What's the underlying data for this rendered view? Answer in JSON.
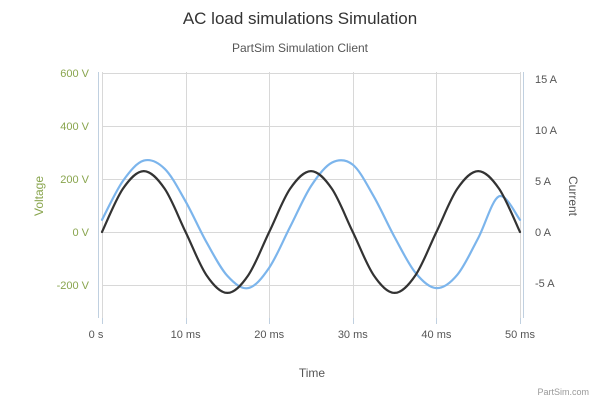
{
  "chart_data": {
    "type": "line",
    "title": "AC load simulations Simulation",
    "subtitle": "PartSim Simulation Client",
    "xlabel": "Time",
    "ylabel_left": "Voltage",
    "ylabel_right": "Current",
    "x_ticks": [
      "0 s",
      "10 ms",
      "20 ms",
      "30 ms",
      "40 ms",
      "50 ms"
    ],
    "y_left_ticks": [
      "600 V",
      "400 V",
      "200 V",
      "0 V",
      "-200 V"
    ],
    "y_right_ticks": [
      "15 A",
      "10 A",
      "5 A",
      "0 A",
      "-5 A"
    ],
    "xlim_ms": [
      0,
      50
    ],
    "ylim_left_V": [
      -300,
      600
    ],
    "ylim_right_A": [
      -7.5,
      15
    ],
    "grid": true,
    "series": [
      {
        "axis": "left",
        "unit": "V",
        "color": "#4572a7",
        "x_ms": [
          0,
          2.5,
          5,
          7.5,
          10,
          12.5,
          15,
          17.5,
          20,
          22.5,
          25,
          27.5,
          30,
          32.5,
          35,
          37.5,
          40,
          42.5,
          45,
          47.5,
          50
        ],
        "y": [
          0,
          163,
          230,
          163,
          0,
          -163,
          -230,
          -163,
          0,
          163,
          230,
          163,
          0,
          -163,
          -230,
          -163,
          0,
          163,
          230,
          163,
          0
        ]
      },
      {
        "axis": "right",
        "unit": "A",
        "color": "#7cb5ec",
        "x_ms": [
          0,
          2.5,
          5,
          7.5,
          10,
          12.5,
          15,
          17.5,
          20,
          22.5,
          25,
          27.5,
          30,
          32.5,
          35,
          37.5,
          40,
          42.5,
          45,
          47.5,
          50
        ],
        "y": [
          1.2,
          5.0,
          7.0,
          6.2,
          3.0,
          -1.0,
          -4.3,
          -5.5,
          -3.5,
          0.5,
          4.5,
          6.8,
          6.6,
          3.5,
          -0.5,
          -4.0,
          -5.5,
          -4.2,
          -0.6,
          3.5,
          1.2
        ]
      }
    ],
    "credits": "PartSim.com"
  }
}
